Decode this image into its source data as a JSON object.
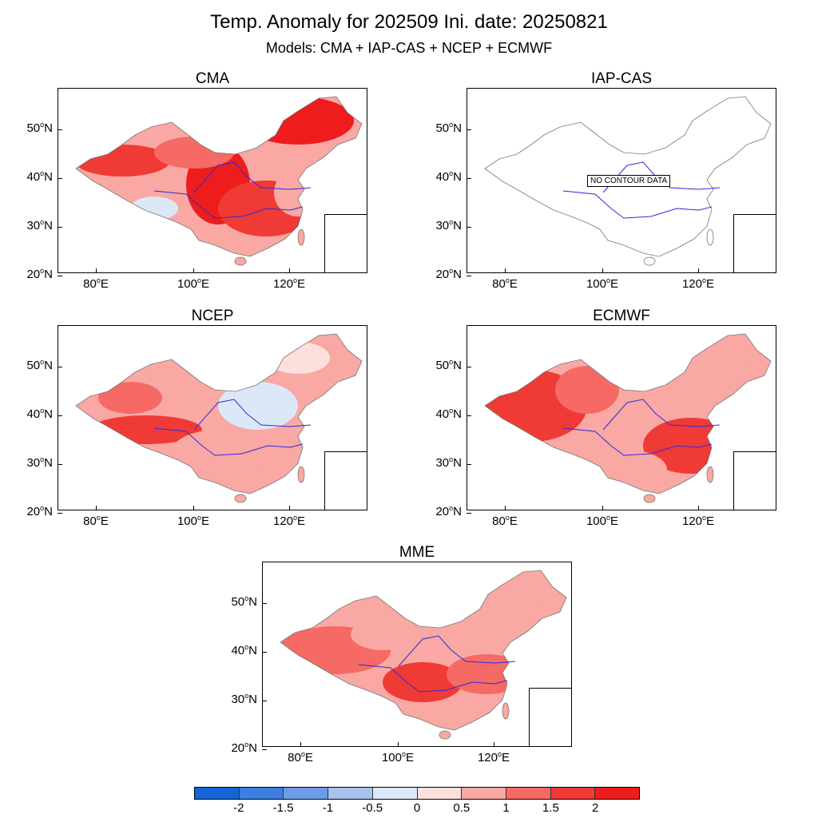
{
  "title": "Temp. Anomaly for 202509 Ini. date: 20250821",
  "subtitle": "Models: CMA + IAP-CAS + NCEP + ECMWF",
  "lat_labels": [
    "50",
    "40",
    "30",
    "20"
  ],
  "lat_suffix": "N",
  "lon_labels": [
    "80",
    "100",
    "120"
  ],
  "lon_suffix": "E",
  "degree": "o",
  "panels": [
    {
      "name": "CMA",
      "has_data": true,
      "intensity": "high-northeast"
    },
    {
      "name": "IAP-CAS",
      "has_data": false,
      "message": "NO CONTOUR DATA"
    },
    {
      "name": "NCEP",
      "has_data": true,
      "intensity": "moderate-west"
    },
    {
      "name": "ECMWF",
      "has_data": true,
      "intensity": "high-west"
    },
    {
      "name": "MME",
      "has_data": true,
      "intensity": "moderate"
    }
  ],
  "colorbar": {
    "labels": [
      "-2",
      "-1.5",
      "-1",
      "-0.5",
      "0",
      "0.5",
      "1",
      "1.5",
      "2"
    ],
    "colors": [
      "#1565d8",
      "#3d7fe0",
      "#6d9ce6",
      "#a9c3ef",
      "#dce8f8",
      "#fde0dc",
      "#f9a8a3",
      "#f56a64",
      "#f03a35",
      "#ee1c1c"
    ]
  }
}
